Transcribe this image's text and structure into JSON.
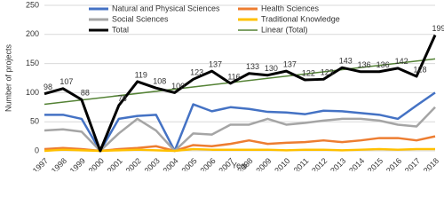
{
  "chart_data": {
    "type": "line",
    "x_label": "Year",
    "y_label": "Number of projects",
    "categories": [
      "1997",
      "1998",
      "1999",
      "2000",
      "2001",
      "2002",
      "2003",
      "2004",
      "2005",
      "2006",
      "2007",
      "2008",
      "2009",
      "2010",
      "2011",
      "2012",
      "2013",
      "2014",
      "2015",
      "2016",
      "2017",
      "2018"
    ],
    "series": [
      {
        "name": "Natural and Physical Sciences",
        "color": "#4472c4",
        "width": 2.5,
        "values": [
          62,
          62,
          55,
          0,
          55,
          60,
          62,
          0,
          80,
          68,
          75,
          72,
          67,
          66,
          63,
          69,
          68,
          65,
          62,
          55,
          78,
          100
        ]
      },
      {
        "name": "Health Sciences",
        "color": "#ed7d31",
        "width": 2.5,
        "values": [
          3,
          5,
          3,
          0,
          3,
          5,
          8,
          0,
          10,
          8,
          12,
          18,
          12,
          14,
          15,
          18,
          15,
          18,
          22,
          22,
          18,
          25
        ]
      },
      {
        "name": "Social Sciences",
        "color": "#a5a5a5",
        "width": 2.5,
        "values": [
          35,
          37,
          33,
          0,
          30,
          55,
          35,
          0,
          30,
          28,
          45,
          45,
          55,
          45,
          48,
          52,
          55,
          55,
          52,
          45,
          42,
          75
        ]
      },
      {
        "name": "Traditional Knowledge",
        "color": "#ffc000",
        "width": 2.5,
        "values": [
          0,
          2,
          1,
          0,
          1,
          2,
          1,
          0,
          3,
          2,
          2,
          2,
          2,
          1,
          2,
          2,
          1,
          2,
          3,
          2,
          3,
          3
        ]
      },
      {
        "name": "Total",
        "color": "#000000",
        "width": 3,
        "values": [
          98,
          107,
          88,
          0,
          78,
          119,
          108,
          100,
          123,
          137,
          116,
          133,
          130,
          137,
          122,
          123,
          143,
          136,
          136,
          142,
          128,
          199
        ],
        "value_labels": [
          "98",
          "107",
          "88",
          null,
          "78",
          "119",
          "108",
          "100",
          "123",
          "137",
          "116",
          "133",
          "130",
          "137",
          "122",
          "123",
          "143",
          "136",
          "136",
          "142",
          "128",
          "199"
        ]
      }
    ],
    "trendline": {
      "name": "Linear (Total)",
      "color": "#548235",
      "values": [
        80,
        158
      ]
    },
    "ylim": [
      0,
      250
    ],
    "yticks": [
      0,
      50,
      100,
      150,
      200,
      250
    ],
    "grid": true
  }
}
